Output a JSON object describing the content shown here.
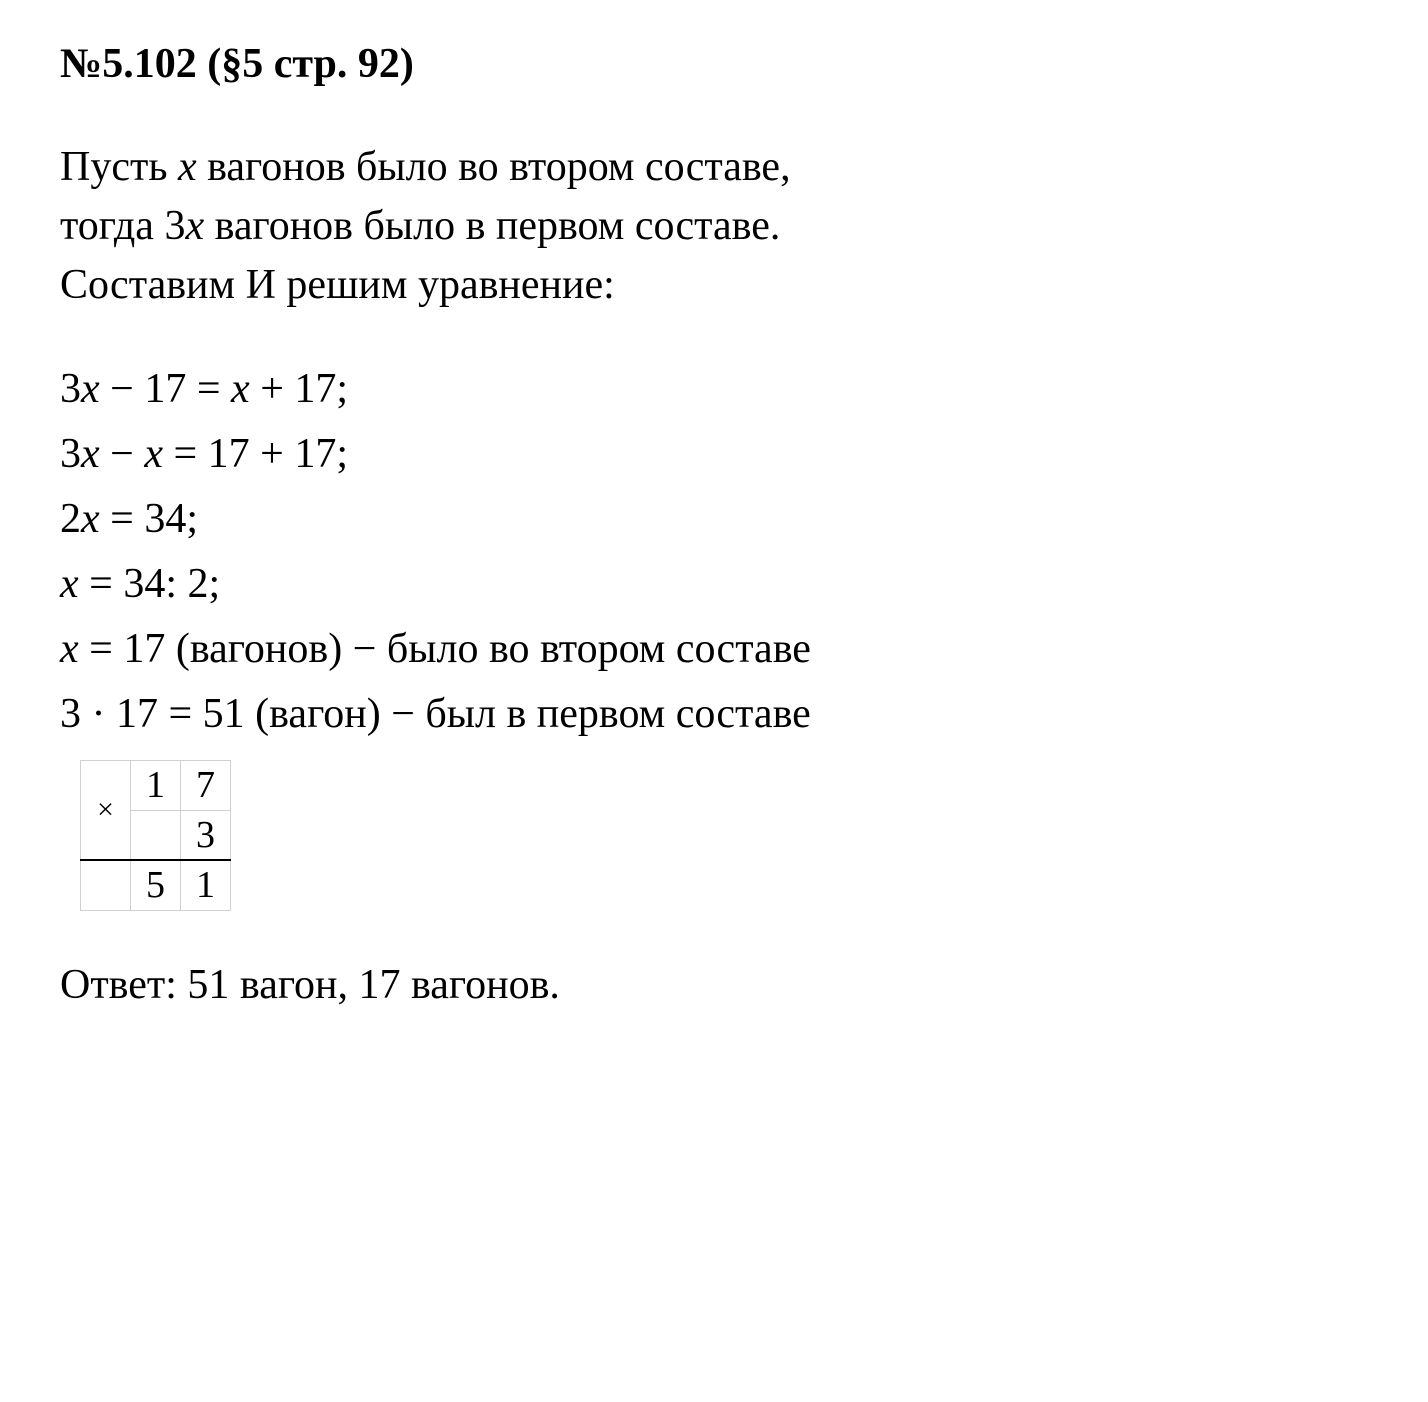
{
  "heading": "№5.102 (§5 стр. 92)",
  "intro": {
    "line1_a": "Пусть ",
    "line1_x": "x",
    "line1_b": " вагонов было во втором составе,",
    "line2_a": "тогда 3",
    "line2_x": "x",
    "line2_b": " вагонов было в первом составе.",
    "line3": "Составим И решим уравнение:"
  },
  "eq": {
    "l1_a": "3",
    "l1_x1": "x",
    "l1_b": " − 17 = ",
    "l1_x2": "x",
    "l1_c": " + 17;",
    "l2_a": "3",
    "l2_x1": "x",
    "l2_b": " − ",
    "l2_x2": "x",
    "l2_c": " = 17 + 17;",
    "l3_a": "2",
    "l3_x": "x",
    "l3_b": " = 34;",
    "l4_x": "x",
    "l4_a": " = 34: 2;",
    "l5_x": "x",
    "l5_a": " = 17 (вагонов) − было во втором составе",
    "l6": "3 · 17 = 51 (вагон) − был в первом составе"
  },
  "mult": {
    "sign": "×",
    "r1c2": "1",
    "r1c3": "7",
    "r2c3": "3",
    "r3c2": "5",
    "r3c3": "1"
  },
  "answer": "Ответ: 51 вагон, 17 вагонов.",
  "colors": {
    "text": "#000000",
    "background": "#ffffff",
    "table_border": "#d0d0d0",
    "hline": "#000000"
  },
  "typography": {
    "heading_fontsize": 42,
    "body_fontsize": 42,
    "table_fontsize": 38,
    "font_family": "Georgia / Times-like serif"
  }
}
